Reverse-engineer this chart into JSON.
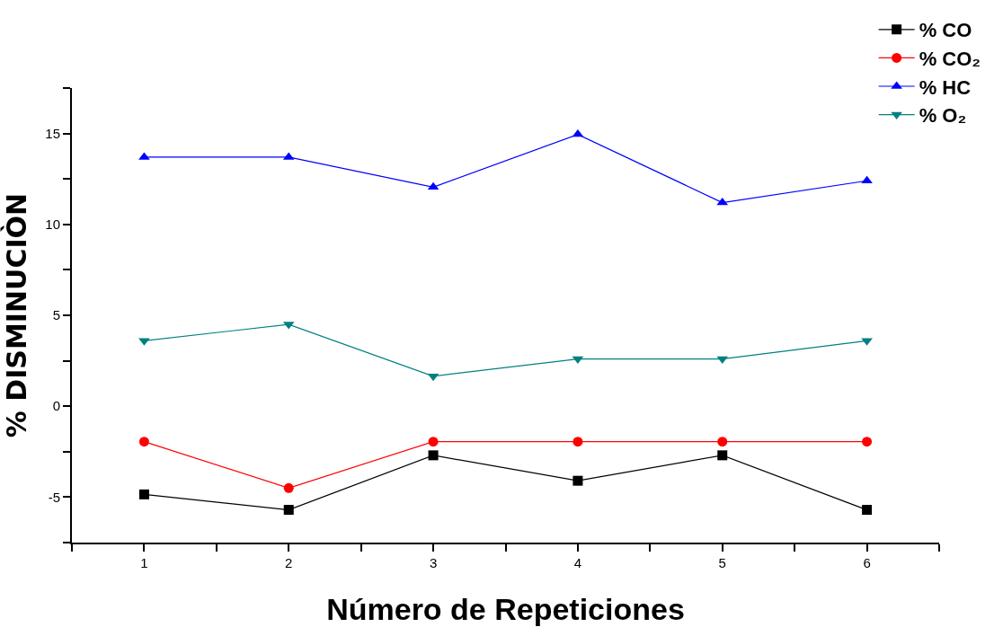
{
  "chart_data": {
    "type": "line",
    "xlabel": "Número de Repeticiones",
    "ylabel": "% DISMINUCIÒN",
    "x": [
      1,
      2,
      3,
      4,
      5,
      6
    ],
    "series": [
      {
        "name": "% CO",
        "color": "#000000",
        "marker": "square",
        "values": [
          -4.85,
          -5.7,
          -2.7,
          -4.1,
          -2.7,
          -5.7
        ]
      },
      {
        "name": "% CO₂",
        "color": "#ff0000",
        "marker": "circle",
        "values": [
          -1.95,
          -4.5,
          -1.95,
          -1.95,
          -1.95,
          -1.95
        ]
      },
      {
        "name": "% HC",
        "color": "#0000ff",
        "marker": "triangle",
        "values": [
          13.7,
          13.7,
          12.05,
          14.95,
          11.2,
          12.4
        ]
      },
      {
        "name": "% O₂",
        "color": "#008080",
        "marker": "triangle-down",
        "values": [
          3.6,
          4.5,
          1.65,
          2.6,
          2.6,
          3.6
        ]
      }
    ],
    "xlim": [
      0.5,
      6.5
    ],
    "xticks": [
      {
        "value": 0.5,
        "label": null
      },
      1,
      {
        "value": 1.5,
        "label": null
      },
      2,
      {
        "value": 2.5,
        "label": null
      },
      3,
      {
        "value": 3.5,
        "label": null
      },
      4,
      {
        "value": 4.5,
        "label": null
      },
      5,
      {
        "value": 5.5,
        "label": null
      },
      6,
      {
        "value": 6.5,
        "label": null
      }
    ],
    "ylim": [
      -7.5,
      17.5
    ],
    "yticks": [
      {
        "value": -7.5,
        "label": null
      },
      -5,
      {
        "value": -2.5,
        "label": null
      },
      0,
      {
        "value": 2.5,
        "label": null
      },
      5,
      {
        "value": 7.5,
        "label": null
      },
      10,
      {
        "value": 12.5,
        "label": null
      },
      15,
      {
        "value": 17.5,
        "label": null
      }
    ],
    "grid": false,
    "legend": "top right",
    "line_style": "solid"
  }
}
